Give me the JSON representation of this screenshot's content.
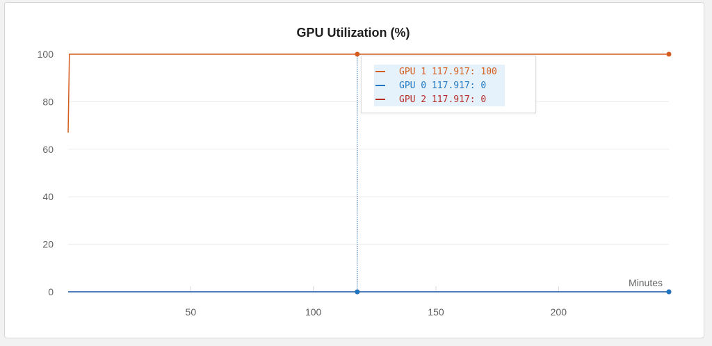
{
  "chart_data": {
    "type": "line",
    "title": "GPU Utilization (%)",
    "xlabel": "Minutes",
    "ylabel": "",
    "xlim": [
      0,
      245
    ],
    "ylim": [
      0,
      100
    ],
    "x_ticks": [
      50,
      100,
      150,
      200
    ],
    "y_ticks": [
      0,
      20,
      40,
      60,
      80,
      100
    ],
    "grid": "horizontal",
    "series": [
      {
        "name": "GPU 1",
        "color": "#d55c1f",
        "points": [
          [
            0,
            67
          ],
          [
            0.5,
            100
          ],
          [
            117.917,
            100
          ],
          [
            245,
            100
          ]
        ]
      },
      {
        "name": "GPU 0",
        "color": "#1f77c4",
        "points": [
          [
            0,
            0
          ],
          [
            117.917,
            0
          ],
          [
            245,
            0
          ]
        ]
      },
      {
        "name": "GPU 2",
        "color": "#b72b25",
        "points": [
          [
            0,
            0
          ],
          [
            117.917,
            0
          ],
          [
            245,
            0
          ]
        ]
      }
    ],
    "hover": {
      "x": 117.917,
      "entries": [
        {
          "label": "GPU 1 117.917: 100",
          "color": "#d55c1f"
        },
        {
          "label": "GPU 0 117.917: 0",
          "color": "#1f77c4"
        },
        {
          "label": "GPU 2 117.917: 0",
          "color": "#b72b25"
        }
      ]
    }
  }
}
